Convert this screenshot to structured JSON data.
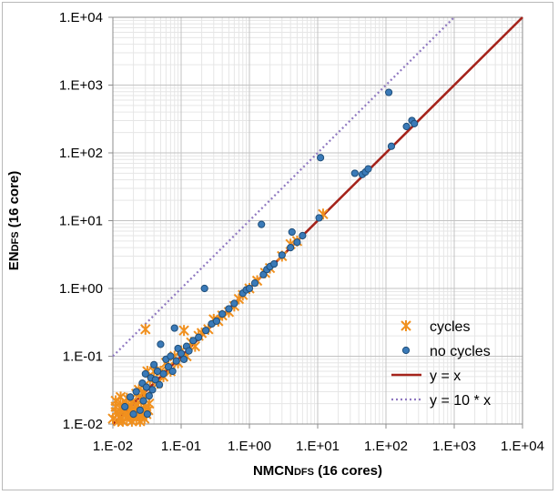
{
  "chart_data": {
    "type": "scatter",
    "title": "",
    "xlabel": "NMCN",
    "xlabel_sub": "DFS",
    "xlabel_suffix": " (16 cores)",
    "ylabel": "EN",
    "ylabel_sub": "DFS",
    "ylabel_suffix": " (16 core)",
    "xscale": "log",
    "yscale": "log",
    "xlim": [
      0.01,
      10000
    ],
    "ylim": [
      0.01,
      10000
    ],
    "xticks": [
      "1.E-02",
      "1.E-01",
      "1.E+00",
      "1.E+01",
      "1.E+02",
      "1.E+03",
      "1.E+04"
    ],
    "yticks": [
      "1.E-02",
      "1.E-01",
      "1.E+00",
      "1.E+01",
      "1.E+02",
      "1.E+03",
      "1.E+04"
    ],
    "grid": true,
    "legend_position": "bottom-right",
    "series": [
      {
        "name": "cycles",
        "marker": "asterisk",
        "color": "#f0901e",
        "points": [
          [
            0.01,
            0.012
          ],
          [
            0.011,
            0.015
          ],
          [
            0.011,
            0.018
          ],
          [
            0.012,
            0.011
          ],
          [
            0.012,
            0.014
          ],
          [
            0.013,
            0.017
          ],
          [
            0.013,
            0.012
          ],
          [
            0.014,
            0.019
          ],
          [
            0.014,
            0.011
          ],
          [
            0.015,
            0.014
          ],
          [
            0.015,
            0.016
          ],
          [
            0.016,
            0.012
          ],
          [
            0.017,
            0.018
          ],
          [
            0.017,
            0.013
          ],
          [
            0.018,
            0.015
          ],
          [
            0.019,
            0.011
          ],
          [
            0.019,
            0.017
          ],
          [
            0.02,
            0.013
          ],
          [
            0.021,
            0.016
          ],
          [
            0.022,
            0.012
          ],
          [
            0.023,
            0.019
          ],
          [
            0.024,
            0.014
          ],
          [
            0.025,
            0.011
          ],
          [
            0.026,
            0.017
          ],
          [
            0.027,
            0.013
          ],
          [
            0.028,
            0.015
          ],
          [
            0.029,
            0.012
          ],
          [
            0.03,
            0.018
          ],
          [
            0.031,
            0.014
          ],
          [
            0.033,
            0.016
          ],
          [
            0.011,
            0.022
          ],
          [
            0.013,
            0.025
          ],
          [
            0.016,
            0.024
          ],
          [
            0.019,
            0.021
          ],
          [
            0.022,
            0.028
          ],
          [
            0.026,
            0.023
          ],
          [
            0.03,
            0.026
          ],
          [
            0.034,
            0.02
          ],
          [
            0.028,
            0.03
          ],
          [
            0.024,
            0.032
          ],
          [
            0.03,
            0.25
          ],
          [
            0.032,
            0.06
          ],
          [
            0.035,
            0.045
          ],
          [
            0.04,
            0.06
          ],
          [
            0.045,
            0.04
          ],
          [
            0.05,
            0.06
          ],
          [
            0.055,
            0.05
          ],
          [
            0.06,
            0.08
          ],
          [
            0.065,
            0.07
          ],
          [
            0.07,
            0.06
          ],
          [
            0.08,
            0.1
          ],
          [
            0.09,
            0.08
          ],
          [
            0.1,
            0.12
          ],
          [
            0.11,
            0.24
          ],
          [
            0.12,
            0.1
          ],
          [
            0.14,
            0.16
          ],
          [
            0.16,
            0.14
          ],
          [
            0.18,
            0.2
          ],
          [
            0.2,
            0.22
          ],
          [
            0.25,
            0.25
          ],
          [
            0.3,
            0.35
          ],
          [
            0.35,
            0.33
          ],
          [
            0.4,
            0.4
          ],
          [
            0.5,
            0.45
          ],
          [
            0.6,
            0.55
          ],
          [
            0.7,
            0.7
          ],
          [
            0.8,
            0.8
          ],
          [
            1.0,
            1.0
          ],
          [
            1.3,
            1.3
          ],
          [
            1.7,
            1.7
          ],
          [
            2.0,
            2.0
          ],
          [
            3.0,
            3.0
          ],
          [
            4.0,
            4.5
          ],
          [
            5.0,
            5.0
          ],
          [
            12.0,
            12.5
          ]
        ]
      },
      {
        "name": "no cycles",
        "marker": "circle",
        "color": "#3a7ab8",
        "points": [
          [
            0.015,
            0.018
          ],
          [
            0.018,
            0.025
          ],
          [
            0.02,
            0.014
          ],
          [
            0.022,
            0.03
          ],
          [
            0.025,
            0.016
          ],
          [
            0.027,
            0.04
          ],
          [
            0.028,
            0.022
          ],
          [
            0.03,
            0.055
          ],
          [
            0.031,
            0.035
          ],
          [
            0.032,
            0.014
          ],
          [
            0.034,
            0.026
          ],
          [
            0.036,
            0.048
          ],
          [
            0.038,
            0.032
          ],
          [
            0.04,
            0.075
          ],
          [
            0.042,
            0.045
          ],
          [
            0.045,
            0.06
          ],
          [
            0.048,
            0.038
          ],
          [
            0.05,
            0.15
          ],
          [
            0.055,
            0.055
          ],
          [
            0.06,
            0.09
          ],
          [
            0.065,
            0.07
          ],
          [
            0.07,
            0.1
          ],
          [
            0.075,
            0.06
          ],
          [
            0.08,
            0.26
          ],
          [
            0.085,
            0.085
          ],
          [
            0.09,
            0.13
          ],
          [
            0.1,
            0.11
          ],
          [
            0.11,
            0.09
          ],
          [
            0.12,
            0.14
          ],
          [
            0.13,
            0.12
          ],
          [
            0.15,
            0.17
          ],
          [
            0.18,
            0.19
          ],
          [
            0.22,
            1.0
          ],
          [
            0.23,
            0.24
          ],
          [
            0.28,
            0.3
          ],
          [
            0.33,
            0.33
          ],
          [
            0.4,
            0.42
          ],
          [
            0.5,
            0.5
          ],
          [
            0.6,
            0.6
          ],
          [
            0.8,
            0.85
          ],
          [
            0.9,
            0.95
          ],
          [
            1.0,
            1.0
          ],
          [
            1.2,
            1.2
          ],
          [
            1.5,
            8.8
          ],
          [
            1.6,
            1.6
          ],
          [
            1.8,
            1.9
          ],
          [
            2.0,
            2.1
          ],
          [
            2.3,
            2.3
          ],
          [
            3.0,
            3.1
          ],
          [
            4.0,
            4.0
          ],
          [
            4.2,
            6.8
          ],
          [
            5.0,
            4.8
          ],
          [
            6.0,
            6.0
          ],
          [
            10.5,
            11.0
          ],
          [
            11.0,
            85.0
          ],
          [
            35.0,
            50.0
          ],
          [
            45.0,
            48.0
          ],
          [
            50.0,
            52.0
          ],
          [
            55.0,
            58.0
          ],
          [
            110.0,
            780.0
          ],
          [
            120.0,
            125.0
          ],
          [
            200.0,
            245.0
          ],
          [
            240.0,
            300.0
          ],
          [
            260.0,
            270.0
          ]
        ]
      },
      {
        "name": "y = x",
        "type": "line",
        "color": "#a5231b",
        "x": [
          0.01,
          10000
        ],
        "y": [
          0.01,
          10000
        ]
      },
      {
        "name": "y = 10 * x",
        "type": "line",
        "style": "dotted",
        "color": "#8f78c0",
        "x": [
          0.01,
          1000
        ],
        "y": [
          0.1,
          10000
        ]
      }
    ]
  }
}
